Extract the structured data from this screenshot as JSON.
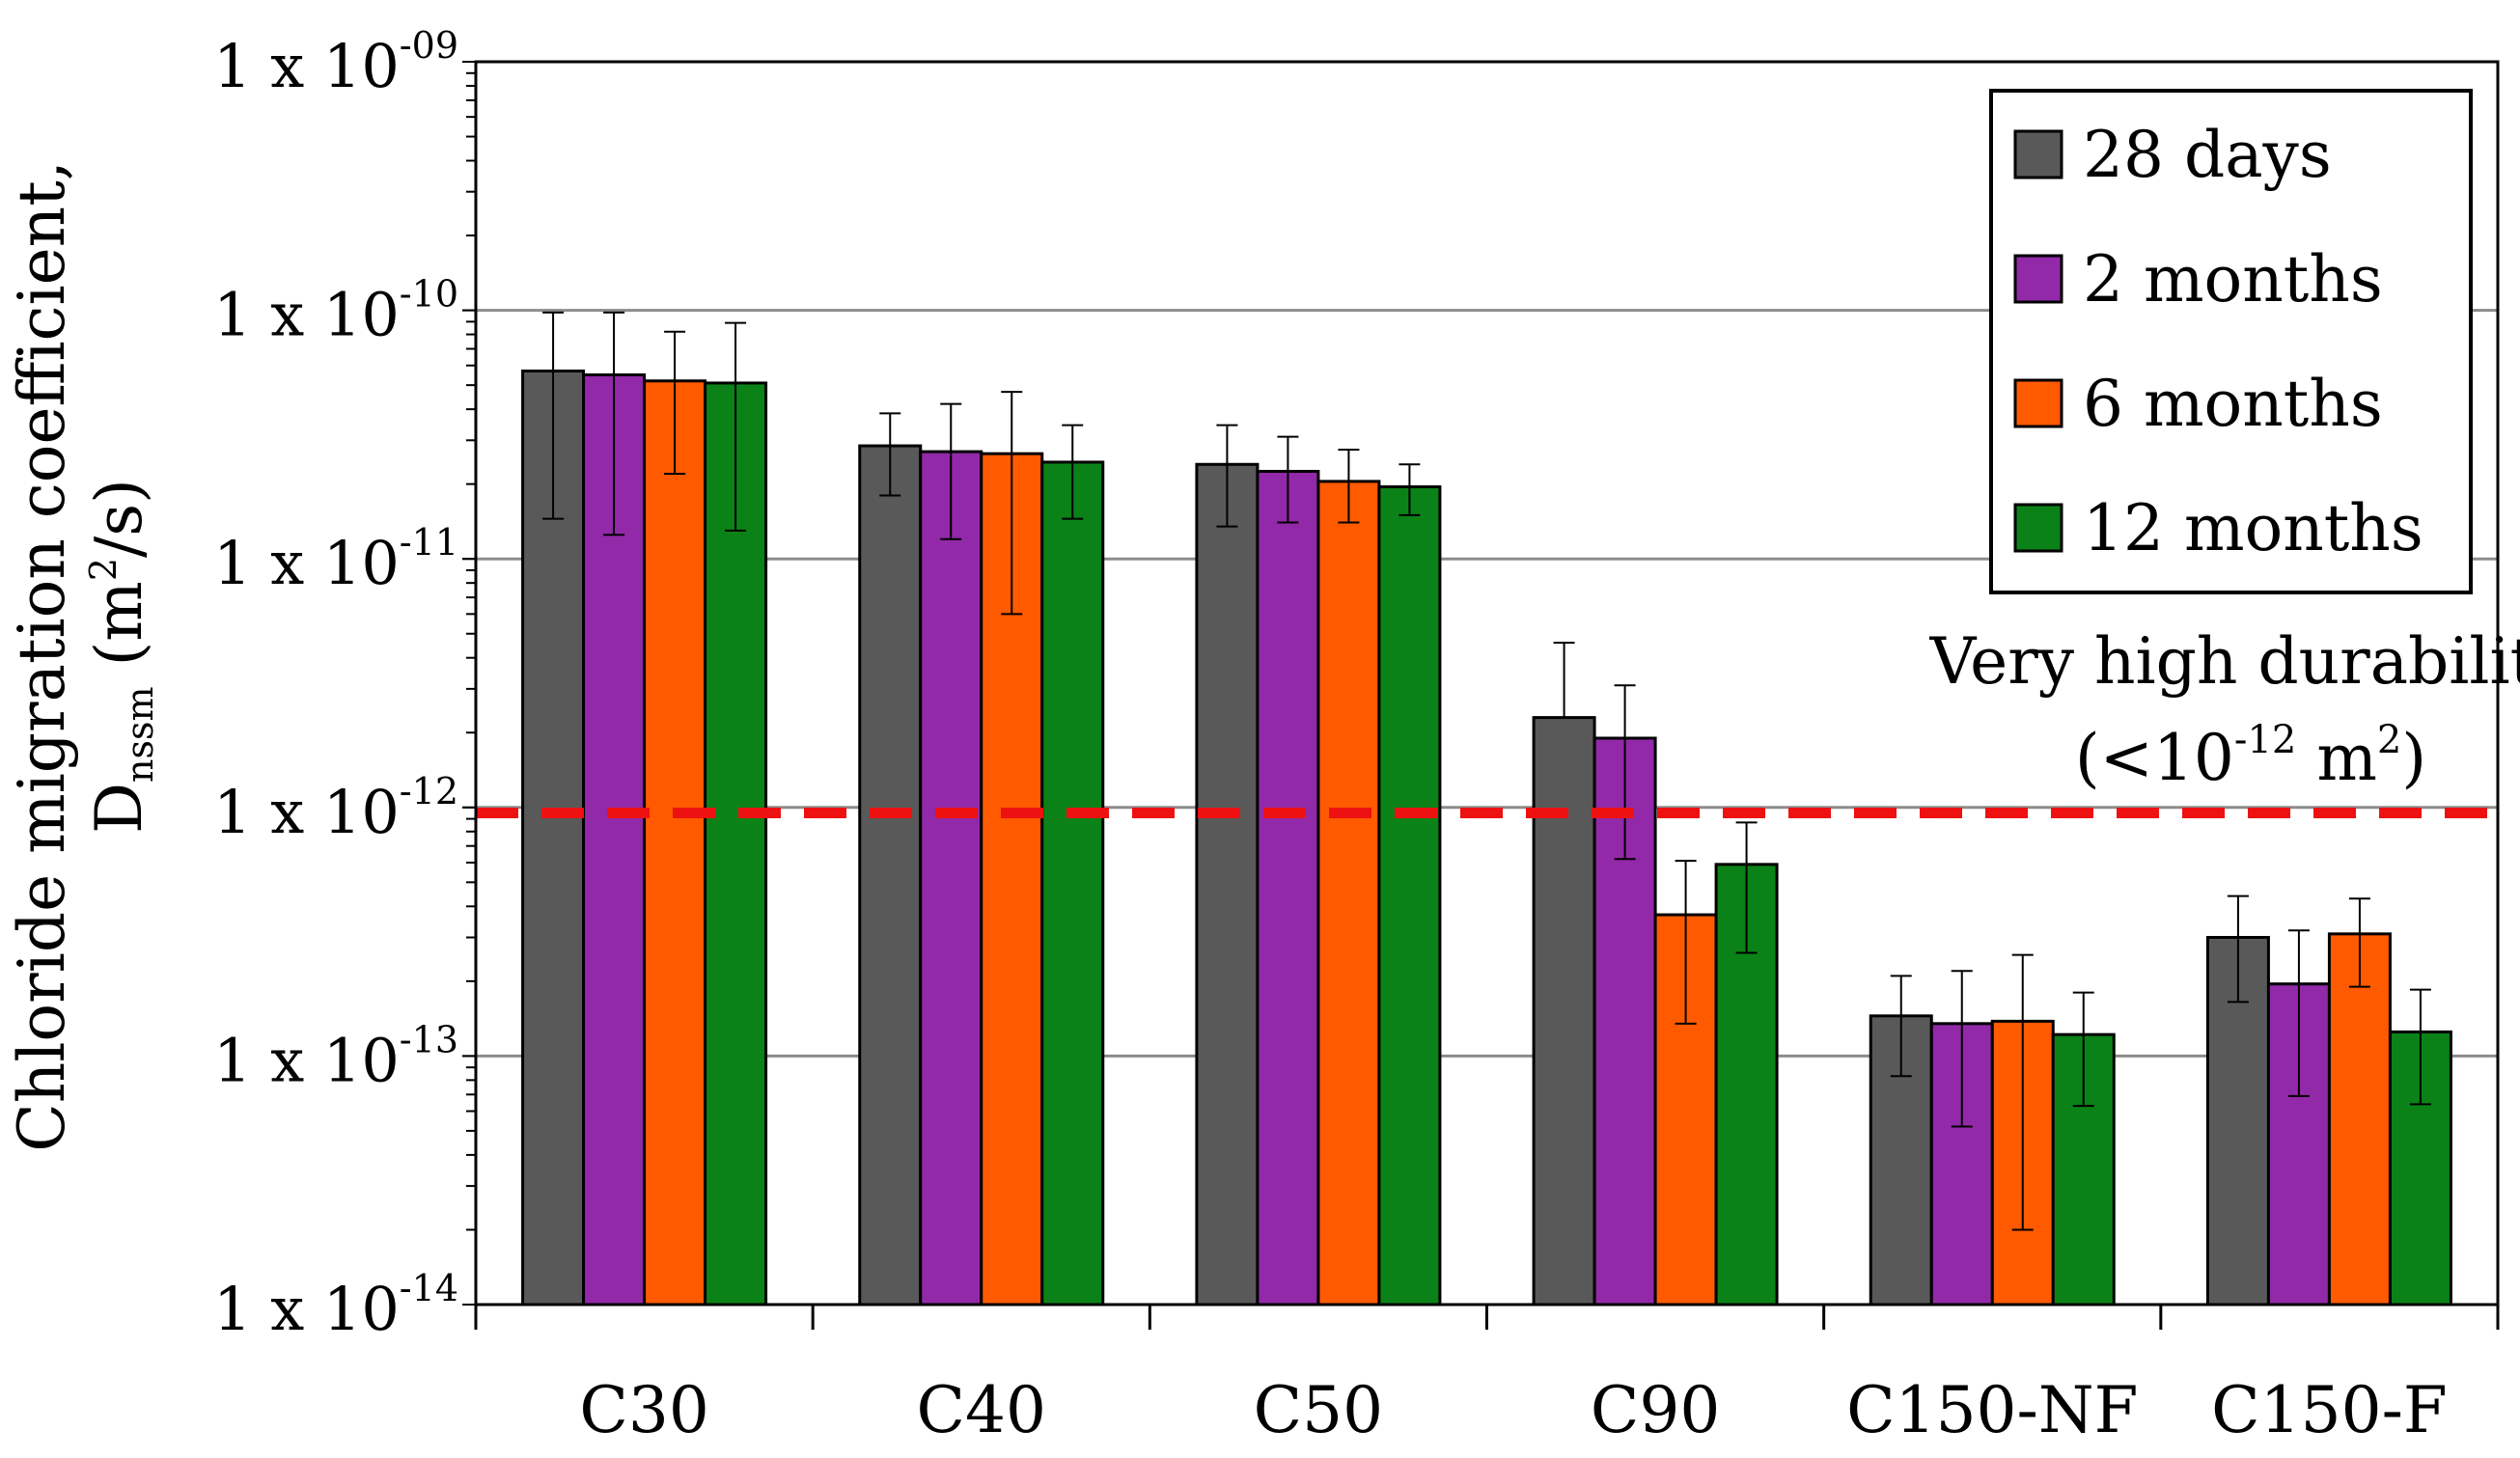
{
  "chart_data": {
    "type": "bar",
    "yscale": "log",
    "ylim": [
      1e-14,
      1e-09
    ],
    "categories": [
      "C30",
      "C40",
      "C50",
      "C90",
      "C150-NF",
      "C150-F"
    ],
    "series": [
      {
        "name": "28 days",
        "color": "#595959",
        "values": [
          5.7e-11,
          2.85e-11,
          2.4e-11,
          2.3e-12,
          1.45e-13,
          3e-13
        ],
        "err_low": [
          1.45e-11,
          1.8e-11,
          1.35e-11,
          2.3e-12,
          8.3e-14,
          1.65e-13
        ],
        "err_high": [
          9.8e-11,
          3.85e-11,
          3.45e-11,
          4.6e-12,
          2.1e-13,
          4.4e-13
        ]
      },
      {
        "name": "2 months",
        "color": "#9229A8",
        "values": [
          5.5e-11,
          2.7e-11,
          2.25e-11,
          1.9e-12,
          1.35e-13,
          1.95e-13
        ],
        "err_low": [
          1.25e-11,
          1.2e-11,
          1.4e-11,
          6.2e-13,
          5.2e-14,
          6.9e-14
        ],
        "err_high": [
          9.8e-11,
          4.2e-11,
          3.1e-11,
          3.1e-12,
          2.2e-13,
          3.2e-13
        ]
      },
      {
        "name": "6 months",
        "color": "#FF5A00",
        "values": [
          5.2e-11,
          2.65e-11,
          2.05e-11,
          3.7e-13,
          1.38e-13,
          3.1e-13
        ],
        "err_low": [
          2.2e-11,
          6e-12,
          1.4e-11,
          1.35e-13,
          2e-14,
          1.9e-13
        ],
        "err_high": [
          8.2e-11,
          4.7e-11,
          2.75e-11,
          6.1e-13,
          2.55e-13,
          4.3e-13
        ]
      },
      {
        "name": "12 months",
        "color": "#0B8217",
        "values": [
          5.1e-11,
          2.45e-11,
          1.95e-11,
          5.9e-13,
          1.22e-13,
          1.25e-13
        ],
        "err_low": [
          1.3e-11,
          1.45e-11,
          1.5e-11,
          2.6e-13,
          6.3e-14,
          6.4e-14
        ],
        "err_high": [
          8.9e-11,
          3.45e-11,
          2.4e-11,
          8.7e-13,
          1.8e-13,
          1.85e-13
        ]
      }
    ],
    "threshold": {
      "value": 9.5e-13,
      "color": "#EE1111",
      "label_line1": "Very high durability",
      "label_line2_pre": "(<10",
      "label_line2_exp": "-12",
      "label_line2_post": " m",
      "label_line2_sup": "2",
      "label_line2_end": ")"
    },
    "yticks": [
      {
        "value": 1e-09,
        "mant": "1 x 10",
        "exp": "-09"
      },
      {
        "value": 1e-10,
        "mant": "1 x 10",
        "exp": "-10"
      },
      {
        "value": 1e-11,
        "mant": "1 x 10",
        "exp": "-11"
      },
      {
        "value": 1e-12,
        "mant": "1 x 10",
        "exp": "-12"
      },
      {
        "value": 1e-13,
        "mant": "1 x 10",
        "exp": "-13"
      },
      {
        "value": 1e-14,
        "mant": "1 x 10",
        "exp": "-14"
      }
    ],
    "ylabel_line1": "Chloride migration coefficient,",
    "ylabel_line2_main": "D",
    "ylabel_line2_sub": "nssm",
    "ylabel_line2_unit": " (m",
    "ylabel_line2_sup": "2",
    "ylabel_line2_end": "/s)",
    "legend_position": "top-right",
    "grid": true
  }
}
